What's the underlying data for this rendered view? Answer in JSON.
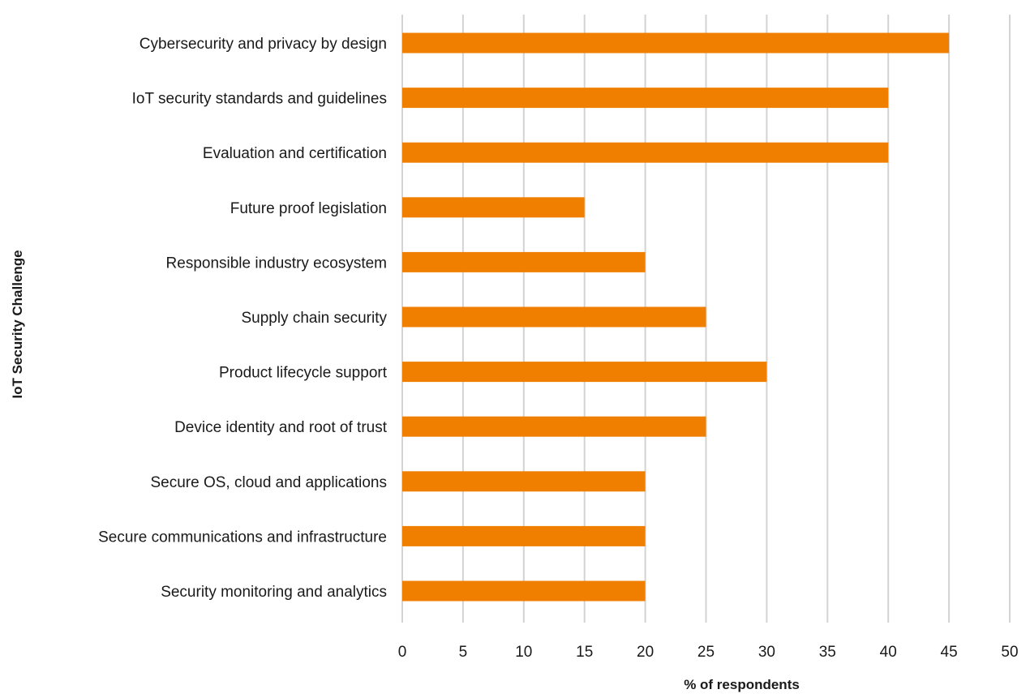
{
  "chart_data": {
    "type": "bar",
    "orientation": "horizontal",
    "categories": [
      "Cybersecurity and privacy by design",
      "IoT security standards and guidelines",
      "Evaluation and certification",
      "Future proof legislation",
      "Responsible industry ecosystem",
      "Supply chain security",
      "Product lifecycle support",
      "Device identity and root of trust",
      "Secure OS, cloud and applications",
      "Secure communications and infrastructure",
      "Security monitoring and analytics"
    ],
    "values": [
      45,
      40,
      40,
      15,
      20,
      25,
      30,
      25,
      20,
      20,
      20
    ],
    "xlabel": "% of respondents",
    "ylabel": "IoT Security Challenge",
    "xlim": [
      0,
      50
    ],
    "xticks": [
      "0",
      "5",
      "10",
      "15",
      "20",
      "25",
      "30",
      "35",
      "40",
      "45",
      "50"
    ],
    "grid": "vertical",
    "legend": "none",
    "bar_color": "#f07f00"
  }
}
